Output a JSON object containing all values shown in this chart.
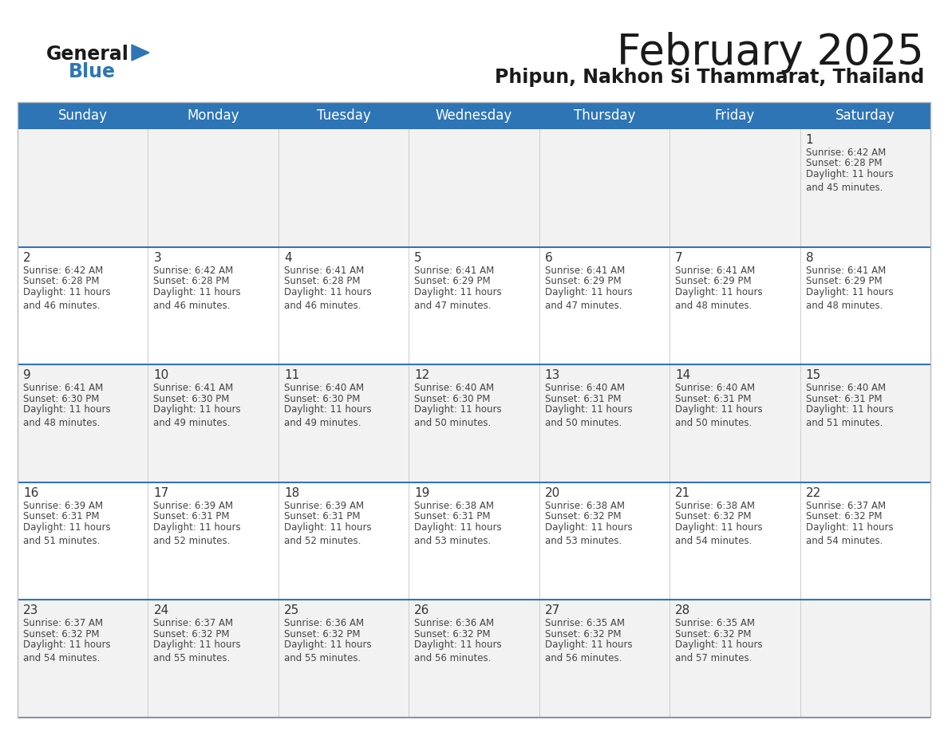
{
  "title": "February 2025",
  "subtitle": "Phipun, Nakhon Si Thammarat, Thailand",
  "header_bg": "#2E75B6",
  "header_text_color": "#FFFFFF",
  "days_of_week": [
    "Sunday",
    "Monday",
    "Tuesday",
    "Wednesday",
    "Thursday",
    "Friday",
    "Saturday"
  ],
  "bg_color": "#FFFFFF",
  "row_bg_odd": "#F2F2F2",
  "row_bg_even": "#FFFFFF",
  "grid_line_color": "#2E75B6",
  "day_num_color": "#333333",
  "info_text_color": "#444444",
  "calendar": [
    [
      null,
      null,
      null,
      null,
      null,
      null,
      {
        "day": 1,
        "sunrise": "6:42 AM",
        "sunset": "6:28 PM",
        "daylight": "11 hours\nand 45 minutes."
      }
    ],
    [
      {
        "day": 2,
        "sunrise": "6:42 AM",
        "sunset": "6:28 PM",
        "daylight": "11 hours\nand 46 minutes."
      },
      {
        "day": 3,
        "sunrise": "6:42 AM",
        "sunset": "6:28 PM",
        "daylight": "11 hours\nand 46 minutes."
      },
      {
        "day": 4,
        "sunrise": "6:41 AM",
        "sunset": "6:28 PM",
        "daylight": "11 hours\nand 46 minutes."
      },
      {
        "day": 5,
        "sunrise": "6:41 AM",
        "sunset": "6:29 PM",
        "daylight": "11 hours\nand 47 minutes."
      },
      {
        "day": 6,
        "sunrise": "6:41 AM",
        "sunset": "6:29 PM",
        "daylight": "11 hours\nand 47 minutes."
      },
      {
        "day": 7,
        "sunrise": "6:41 AM",
        "sunset": "6:29 PM",
        "daylight": "11 hours\nand 48 minutes."
      },
      {
        "day": 8,
        "sunrise": "6:41 AM",
        "sunset": "6:29 PM",
        "daylight": "11 hours\nand 48 minutes."
      }
    ],
    [
      {
        "day": 9,
        "sunrise": "6:41 AM",
        "sunset": "6:30 PM",
        "daylight": "11 hours\nand 48 minutes."
      },
      {
        "day": 10,
        "sunrise": "6:41 AM",
        "sunset": "6:30 PM",
        "daylight": "11 hours\nand 49 minutes."
      },
      {
        "day": 11,
        "sunrise": "6:40 AM",
        "sunset": "6:30 PM",
        "daylight": "11 hours\nand 49 minutes."
      },
      {
        "day": 12,
        "sunrise": "6:40 AM",
        "sunset": "6:30 PM",
        "daylight": "11 hours\nand 50 minutes."
      },
      {
        "day": 13,
        "sunrise": "6:40 AM",
        "sunset": "6:31 PM",
        "daylight": "11 hours\nand 50 minutes."
      },
      {
        "day": 14,
        "sunrise": "6:40 AM",
        "sunset": "6:31 PM",
        "daylight": "11 hours\nand 50 minutes."
      },
      {
        "day": 15,
        "sunrise": "6:40 AM",
        "sunset": "6:31 PM",
        "daylight": "11 hours\nand 51 minutes."
      }
    ],
    [
      {
        "day": 16,
        "sunrise": "6:39 AM",
        "sunset": "6:31 PM",
        "daylight": "11 hours\nand 51 minutes."
      },
      {
        "day": 17,
        "sunrise": "6:39 AM",
        "sunset": "6:31 PM",
        "daylight": "11 hours\nand 52 minutes."
      },
      {
        "day": 18,
        "sunrise": "6:39 AM",
        "sunset": "6:31 PM",
        "daylight": "11 hours\nand 52 minutes."
      },
      {
        "day": 19,
        "sunrise": "6:38 AM",
        "sunset": "6:31 PM",
        "daylight": "11 hours\nand 53 minutes."
      },
      {
        "day": 20,
        "sunrise": "6:38 AM",
        "sunset": "6:32 PM",
        "daylight": "11 hours\nand 53 minutes."
      },
      {
        "day": 21,
        "sunrise": "6:38 AM",
        "sunset": "6:32 PM",
        "daylight": "11 hours\nand 54 minutes."
      },
      {
        "day": 22,
        "sunrise": "6:37 AM",
        "sunset": "6:32 PM",
        "daylight": "11 hours\nand 54 minutes."
      }
    ],
    [
      {
        "day": 23,
        "sunrise": "6:37 AM",
        "sunset": "6:32 PM",
        "daylight": "11 hours\nand 54 minutes."
      },
      {
        "day": 24,
        "sunrise": "6:37 AM",
        "sunset": "6:32 PM",
        "daylight": "11 hours\nand 55 minutes."
      },
      {
        "day": 25,
        "sunrise": "6:36 AM",
        "sunset": "6:32 PM",
        "daylight": "11 hours\nand 55 minutes."
      },
      {
        "day": 26,
        "sunrise": "6:36 AM",
        "sunset": "6:32 PM",
        "daylight": "11 hours\nand 56 minutes."
      },
      {
        "day": 27,
        "sunrise": "6:35 AM",
        "sunset": "6:32 PM",
        "daylight": "11 hours\nand 56 minutes."
      },
      {
        "day": 28,
        "sunrise": "6:35 AM",
        "sunset": "6:32 PM",
        "daylight": "11 hours\nand 57 minutes."
      },
      null
    ]
  ],
  "title_fontsize": 38,
  "subtitle_fontsize": 17,
  "header_fontsize": 12,
  "day_num_fontsize": 11,
  "cell_text_fontsize": 8.5,
  "logo_general_fontsize": 17,
  "logo_blue_fontsize": 17
}
